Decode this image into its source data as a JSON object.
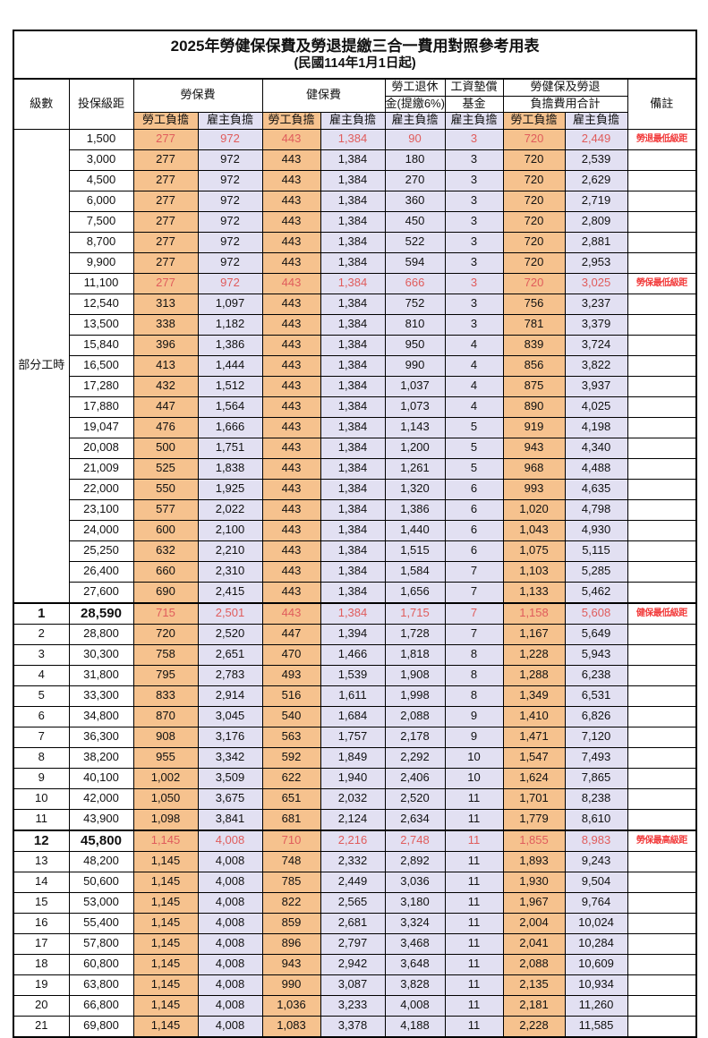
{
  "title": "2025年勞健保保費及勞退提繳三合一費用對照參考用表",
  "subtitle": "(民國114年1月1日起)",
  "colors": {
    "employee_bg": "#F6C28E",
    "employer_bg": "#E2E0F2",
    "value_red": "#E05C5C",
    "remark_red": "#F23C3C"
  },
  "header": {
    "level": "級數",
    "bracket": "投保級距",
    "labor_fee": "勞保費",
    "health_fee": "健保費",
    "pension_line1": "勞工退休",
    "pension_line2": "金(提繳6%)",
    "wage_fund_line1": "工資墊償",
    "wage_fund_line2": "基金",
    "total_line1": "勞健保及勞退",
    "total_line2": "負擔費用合計",
    "remark": "備註",
    "employee_burden": "勞工負擔",
    "employer_burden": "雇主負擔"
  },
  "part_time_label": "部分工時",
  "rows": [
    {
      "level": "",
      "bracket": "1,500",
      "v": [
        "277",
        "972",
        "443",
        "1,384",
        "90",
        "3",
        "720",
        "2,449"
      ],
      "remark": "勞退最低級距",
      "red": true,
      "bold": false,
      "thick": false
    },
    {
      "level": "",
      "bracket": "3,000",
      "v": [
        "277",
        "972",
        "443",
        "1,384",
        "180",
        "3",
        "720",
        "2,539"
      ],
      "remark": "",
      "red": false,
      "bold": false,
      "thick": false
    },
    {
      "level": "",
      "bracket": "4,500",
      "v": [
        "277",
        "972",
        "443",
        "1,384",
        "270",
        "3",
        "720",
        "2,629"
      ],
      "remark": "",
      "red": false,
      "bold": false,
      "thick": false
    },
    {
      "level": "",
      "bracket": "6,000",
      "v": [
        "277",
        "972",
        "443",
        "1,384",
        "360",
        "3",
        "720",
        "2,719"
      ],
      "remark": "",
      "red": false,
      "bold": false,
      "thick": false
    },
    {
      "level": "",
      "bracket": "7,500",
      "v": [
        "277",
        "972",
        "443",
        "1,384",
        "450",
        "3",
        "720",
        "2,809"
      ],
      "remark": "",
      "red": false,
      "bold": false,
      "thick": false
    },
    {
      "level": "",
      "bracket": "8,700",
      "v": [
        "277",
        "972",
        "443",
        "1,384",
        "522",
        "3",
        "720",
        "2,881"
      ],
      "remark": "",
      "red": false,
      "bold": false,
      "thick": false
    },
    {
      "level": "",
      "bracket": "9,900",
      "v": [
        "277",
        "972",
        "443",
        "1,384",
        "594",
        "3",
        "720",
        "2,953"
      ],
      "remark": "",
      "red": false,
      "bold": false,
      "thick": false
    },
    {
      "level": "",
      "bracket": "11,100",
      "v": [
        "277",
        "972",
        "443",
        "1,384",
        "666",
        "3",
        "720",
        "3,025"
      ],
      "remark": "勞保最低級距",
      "red": true,
      "bold": false,
      "thick": false
    },
    {
      "level": "",
      "bracket": "12,540",
      "v": [
        "313",
        "1,097",
        "443",
        "1,384",
        "752",
        "3",
        "756",
        "3,237"
      ],
      "remark": "",
      "red": false,
      "bold": false,
      "thick": false
    },
    {
      "level": "",
      "bracket": "13,500",
      "v": [
        "338",
        "1,182",
        "443",
        "1,384",
        "810",
        "3",
        "781",
        "3,379"
      ],
      "remark": "",
      "red": false,
      "bold": false,
      "thick": false
    },
    {
      "level": "",
      "bracket": "15,840",
      "v": [
        "396",
        "1,386",
        "443",
        "1,384",
        "950",
        "4",
        "839",
        "3,724"
      ],
      "remark": "",
      "red": false,
      "bold": false,
      "thick": false
    },
    {
      "level": "",
      "bracket": "16,500",
      "v": [
        "413",
        "1,444",
        "443",
        "1,384",
        "990",
        "4",
        "856",
        "3,822"
      ],
      "remark": "",
      "red": false,
      "bold": false,
      "thick": false
    },
    {
      "level": "",
      "bracket": "17,280",
      "v": [
        "432",
        "1,512",
        "443",
        "1,384",
        "1,037",
        "4",
        "875",
        "3,937"
      ],
      "remark": "",
      "red": false,
      "bold": false,
      "thick": false
    },
    {
      "level": "",
      "bracket": "17,880",
      "v": [
        "447",
        "1,564",
        "443",
        "1,384",
        "1,073",
        "4",
        "890",
        "4,025"
      ],
      "remark": "",
      "red": false,
      "bold": false,
      "thick": false
    },
    {
      "level": "",
      "bracket": "19,047",
      "v": [
        "476",
        "1,666",
        "443",
        "1,384",
        "1,143",
        "5",
        "919",
        "4,198"
      ],
      "remark": "",
      "red": false,
      "bold": false,
      "thick": false
    },
    {
      "level": "",
      "bracket": "20,008",
      "v": [
        "500",
        "1,751",
        "443",
        "1,384",
        "1,200",
        "5",
        "943",
        "4,340"
      ],
      "remark": "",
      "red": false,
      "bold": false,
      "thick": false
    },
    {
      "level": "",
      "bracket": "21,009",
      "v": [
        "525",
        "1,838",
        "443",
        "1,384",
        "1,261",
        "5",
        "968",
        "4,488"
      ],
      "remark": "",
      "red": false,
      "bold": false,
      "thick": false
    },
    {
      "level": "",
      "bracket": "22,000",
      "v": [
        "550",
        "1,925",
        "443",
        "1,384",
        "1,320",
        "6",
        "993",
        "4,635"
      ],
      "remark": "",
      "red": false,
      "bold": false,
      "thick": false
    },
    {
      "level": "",
      "bracket": "23,100",
      "v": [
        "577",
        "2,022",
        "443",
        "1,384",
        "1,386",
        "6",
        "1,020",
        "4,798"
      ],
      "remark": "",
      "red": false,
      "bold": false,
      "thick": false
    },
    {
      "level": "",
      "bracket": "24,000",
      "v": [
        "600",
        "2,100",
        "443",
        "1,384",
        "1,440",
        "6",
        "1,043",
        "4,930"
      ],
      "remark": "",
      "red": false,
      "bold": false,
      "thick": false
    },
    {
      "level": "",
      "bracket": "25,250",
      "v": [
        "632",
        "2,210",
        "443",
        "1,384",
        "1,515",
        "6",
        "1,075",
        "5,115"
      ],
      "remark": "",
      "red": false,
      "bold": false,
      "thick": false
    },
    {
      "level": "",
      "bracket": "26,400",
      "v": [
        "660",
        "2,310",
        "443",
        "1,384",
        "1,584",
        "7",
        "1,103",
        "5,285"
      ],
      "remark": "",
      "red": false,
      "bold": false,
      "thick": false
    },
    {
      "level": "",
      "bracket": "27,600",
      "v": [
        "690",
        "2,415",
        "443",
        "1,384",
        "1,656",
        "7",
        "1,133",
        "5,462"
      ],
      "remark": "",
      "red": false,
      "bold": false,
      "thick": false
    },
    {
      "level": "1",
      "bracket": "28,590",
      "v": [
        "715",
        "2,501",
        "443",
        "1,384",
        "1,715",
        "7",
        "1,158",
        "5,608"
      ],
      "remark": "健保最低級距",
      "red": true,
      "bold": true,
      "thick": true
    },
    {
      "level": "2",
      "bracket": "28,800",
      "v": [
        "720",
        "2,520",
        "447",
        "1,394",
        "1,728",
        "7",
        "1,167",
        "5,649"
      ],
      "remark": "",
      "red": false,
      "bold": false,
      "thick": false
    },
    {
      "level": "3",
      "bracket": "30,300",
      "v": [
        "758",
        "2,651",
        "470",
        "1,466",
        "1,818",
        "8",
        "1,228",
        "5,943"
      ],
      "remark": "",
      "red": false,
      "bold": false,
      "thick": false
    },
    {
      "level": "4",
      "bracket": "31,800",
      "v": [
        "795",
        "2,783",
        "493",
        "1,539",
        "1,908",
        "8",
        "1,288",
        "6,238"
      ],
      "remark": "",
      "red": false,
      "bold": false,
      "thick": false
    },
    {
      "level": "5",
      "bracket": "33,300",
      "v": [
        "833",
        "2,914",
        "516",
        "1,611",
        "1,998",
        "8",
        "1,349",
        "6,531"
      ],
      "remark": "",
      "red": false,
      "bold": false,
      "thick": false
    },
    {
      "level": "6",
      "bracket": "34,800",
      "v": [
        "870",
        "3,045",
        "540",
        "1,684",
        "2,088",
        "9",
        "1,410",
        "6,826"
      ],
      "remark": "",
      "red": false,
      "bold": false,
      "thick": false
    },
    {
      "level": "7",
      "bracket": "36,300",
      "v": [
        "908",
        "3,176",
        "563",
        "1,757",
        "2,178",
        "9",
        "1,471",
        "7,120"
      ],
      "remark": "",
      "red": false,
      "bold": false,
      "thick": false
    },
    {
      "level": "8",
      "bracket": "38,200",
      "v": [
        "955",
        "3,342",
        "592",
        "1,849",
        "2,292",
        "10",
        "1,547",
        "7,493"
      ],
      "remark": "",
      "red": false,
      "bold": false,
      "thick": false
    },
    {
      "level": "9",
      "bracket": "40,100",
      "v": [
        "1,002",
        "3,509",
        "622",
        "1,940",
        "2,406",
        "10",
        "1,624",
        "7,865"
      ],
      "remark": "",
      "red": false,
      "bold": false,
      "thick": false
    },
    {
      "level": "10",
      "bracket": "42,000",
      "v": [
        "1,050",
        "3,675",
        "651",
        "2,032",
        "2,520",
        "11",
        "1,701",
        "8,238"
      ],
      "remark": "",
      "red": false,
      "bold": false,
      "thick": false
    },
    {
      "level": "11",
      "bracket": "43,900",
      "v": [
        "1,098",
        "3,841",
        "681",
        "2,124",
        "2,634",
        "11",
        "1,779",
        "8,610"
      ],
      "remark": "",
      "red": false,
      "bold": false,
      "thick": false
    },
    {
      "level": "12",
      "bracket": "45,800",
      "v": [
        "1,145",
        "4,008",
        "710",
        "2,216",
        "2,748",
        "11",
        "1,855",
        "8,983"
      ],
      "remark": "勞保最高級距",
      "red": true,
      "bold": true,
      "thick": true
    },
    {
      "level": "13",
      "bracket": "48,200",
      "v": [
        "1,145",
        "4,008",
        "748",
        "2,332",
        "2,892",
        "11",
        "1,893",
        "9,243"
      ],
      "remark": "",
      "red": false,
      "bold": false,
      "thick": false
    },
    {
      "level": "14",
      "bracket": "50,600",
      "v": [
        "1,145",
        "4,008",
        "785",
        "2,449",
        "3,036",
        "11",
        "1,930",
        "9,504"
      ],
      "remark": "",
      "red": false,
      "bold": false,
      "thick": false
    },
    {
      "level": "15",
      "bracket": "53,000",
      "v": [
        "1,145",
        "4,008",
        "822",
        "2,565",
        "3,180",
        "11",
        "1,967",
        "9,764"
      ],
      "remark": "",
      "red": false,
      "bold": false,
      "thick": false
    },
    {
      "level": "16",
      "bracket": "55,400",
      "v": [
        "1,145",
        "4,008",
        "859",
        "2,681",
        "3,324",
        "11",
        "2,004",
        "10,024"
      ],
      "remark": "",
      "red": false,
      "bold": false,
      "thick": false
    },
    {
      "level": "17",
      "bracket": "57,800",
      "v": [
        "1,145",
        "4,008",
        "896",
        "2,797",
        "3,468",
        "11",
        "2,041",
        "10,284"
      ],
      "remark": "",
      "red": false,
      "bold": false,
      "thick": false
    },
    {
      "level": "18",
      "bracket": "60,800",
      "v": [
        "1,145",
        "4,008",
        "943",
        "2,942",
        "3,648",
        "11",
        "2,088",
        "10,609"
      ],
      "remark": "",
      "red": false,
      "bold": false,
      "thick": false
    },
    {
      "level": "19",
      "bracket": "63,800",
      "v": [
        "1,145",
        "4,008",
        "990",
        "3,087",
        "3,828",
        "11",
        "2,135",
        "10,934"
      ],
      "remark": "",
      "red": false,
      "bold": false,
      "thick": false
    },
    {
      "level": "20",
      "bracket": "66,800",
      "v": [
        "1,145",
        "4,008",
        "1,036",
        "3,233",
        "4,008",
        "11",
        "2,181",
        "11,260"
      ],
      "remark": "",
      "red": false,
      "bold": false,
      "thick": false
    },
    {
      "level": "21",
      "bracket": "69,800",
      "v": [
        "1,145",
        "4,008",
        "1,083",
        "3,378",
        "4,188",
        "11",
        "2,228",
        "11,585"
      ],
      "remark": "",
      "red": false,
      "bold": false,
      "thick": false
    }
  ]
}
